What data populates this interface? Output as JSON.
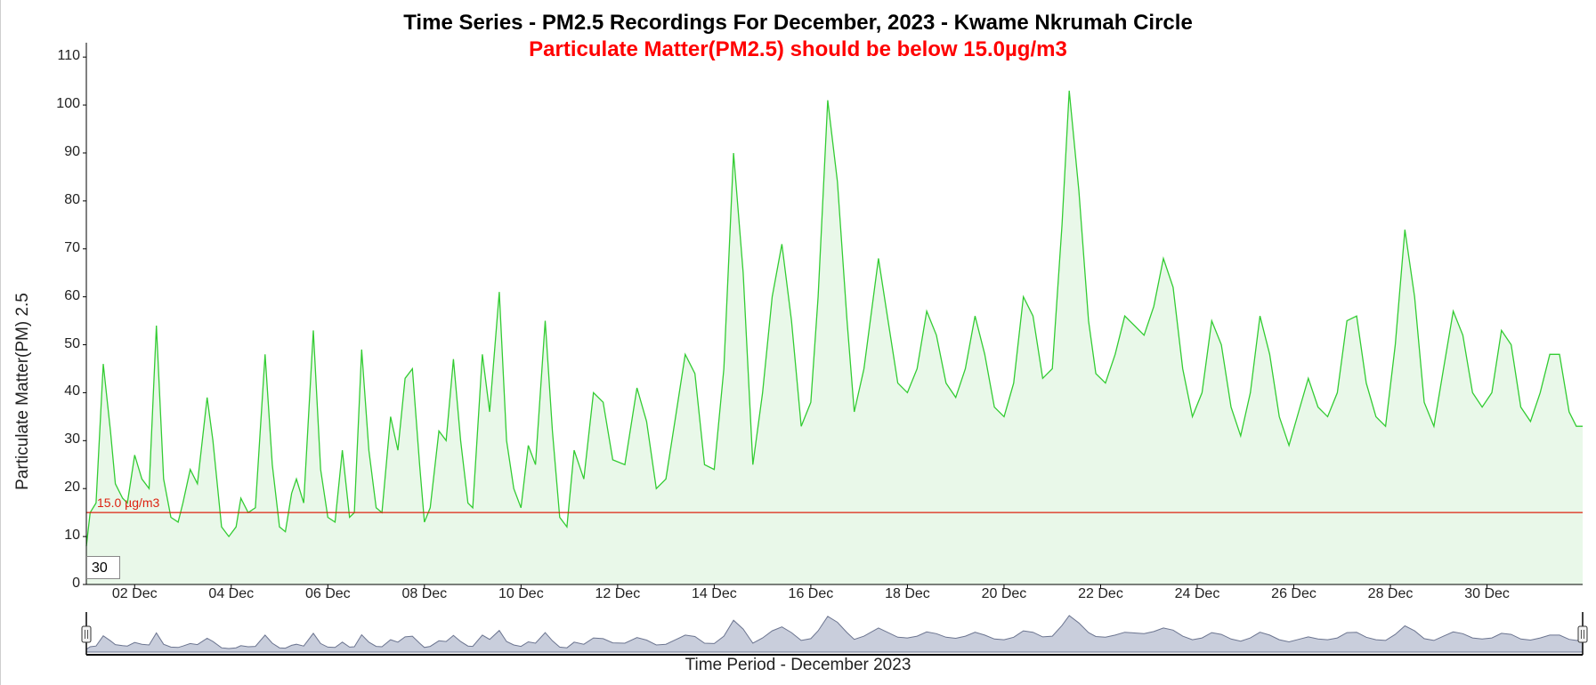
{
  "chart_data": {
    "type": "area",
    "title": "Time Series - PM2.5 Recordings For December, 2023 - Kwame Nkrumah Circle",
    "subtitle": "Particulate Matter(PM2.5) should be below 15.0µg/m3",
    "xlabel": "Time Period - December 2023",
    "ylabel": "Particulate Matter(PM) 2.5",
    "ylim": [
      0,
      113
    ],
    "xlim": [
      1.0,
      31.98
    ],
    "y_ticks": [
      0,
      10,
      20,
      30,
      40,
      50,
      60,
      70,
      80,
      90,
      100,
      110
    ],
    "x_ticks": [
      {
        "label": "02 Dec",
        "day": 2
      },
      {
        "label": "04 Dec",
        "day": 4
      },
      {
        "label": "06 Dec",
        "day": 6
      },
      {
        "label": "08 Dec",
        "day": 8
      },
      {
        "label": "10 Dec",
        "day": 10
      },
      {
        "label": "12 Dec",
        "day": 12
      },
      {
        "label": "14 Dec",
        "day": 14
      },
      {
        "label": "16 Dec",
        "day": 16
      },
      {
        "label": "18 Dec",
        "day": 18
      },
      {
        "label": "20 Dec",
        "day": 20
      },
      {
        "label": "22 Dec",
        "day": 22
      },
      {
        "label": "24 Dec",
        "day": 24
      },
      {
        "label": "26 Dec",
        "day": 26
      },
      {
        "label": "28 Dec",
        "day": 28
      },
      {
        "label": "30 Dec",
        "day": 30
      }
    ],
    "series": [
      {
        "name": "PM2.5",
        "color": "#33cc33",
        "fill": "#e9f8e9",
        "points": [
          [
            1.0,
            8
          ],
          [
            1.08,
            15
          ],
          [
            1.2,
            17
          ],
          [
            1.35,
            46
          ],
          [
            1.5,
            32
          ],
          [
            1.6,
            21
          ],
          [
            1.75,
            18
          ],
          [
            1.85,
            17
          ],
          [
            2.0,
            27
          ],
          [
            2.15,
            22
          ],
          [
            2.3,
            20
          ],
          [
            2.45,
            54
          ],
          [
            2.6,
            22
          ],
          [
            2.75,
            14
          ],
          [
            2.9,
            13
          ],
          [
            3.0,
            17
          ],
          [
            3.15,
            24
          ],
          [
            3.3,
            21
          ],
          [
            3.5,
            39
          ],
          [
            3.62,
            30
          ],
          [
            3.8,
            12
          ],
          [
            3.95,
            10
          ],
          [
            4.1,
            12
          ],
          [
            4.2,
            18
          ],
          [
            4.35,
            15
          ],
          [
            4.5,
            16
          ],
          [
            4.7,
            48
          ],
          [
            4.85,
            25
          ],
          [
            5.0,
            12
          ],
          [
            5.12,
            11
          ],
          [
            5.25,
            19
          ],
          [
            5.35,
            22
          ],
          [
            5.5,
            17
          ],
          [
            5.7,
            53
          ],
          [
            5.85,
            24
          ],
          [
            6.0,
            14
          ],
          [
            6.15,
            13
          ],
          [
            6.3,
            28
          ],
          [
            6.45,
            14
          ],
          [
            6.55,
            15
          ],
          [
            6.7,
            49
          ],
          [
            6.85,
            28
          ],
          [
            7.0,
            16
          ],
          [
            7.12,
            15
          ],
          [
            7.3,
            35
          ],
          [
            7.45,
            28
          ],
          [
            7.6,
            43
          ],
          [
            7.75,
            45
          ],
          [
            7.9,
            25
          ],
          [
            8.0,
            13
          ],
          [
            8.12,
            16
          ],
          [
            8.3,
            32
          ],
          [
            8.45,
            30
          ],
          [
            8.6,
            47
          ],
          [
            8.75,
            30
          ],
          [
            8.9,
            17
          ],
          [
            9.0,
            16
          ],
          [
            9.2,
            48
          ],
          [
            9.35,
            36
          ],
          [
            9.55,
            61
          ],
          [
            9.7,
            30
          ],
          [
            9.85,
            20
          ],
          [
            10.0,
            16
          ],
          [
            10.15,
            29
          ],
          [
            10.3,
            25
          ],
          [
            10.5,
            55
          ],
          [
            10.65,
            32
          ],
          [
            10.8,
            14
          ],
          [
            10.95,
            12
          ],
          [
            11.1,
            28
          ],
          [
            11.3,
            22
          ],
          [
            11.5,
            40
          ],
          [
            11.7,
            38
          ],
          [
            11.9,
            26
          ],
          [
            12.15,
            25
          ],
          [
            12.4,
            41
          ],
          [
            12.6,
            34
          ],
          [
            12.8,
            20
          ],
          [
            13.0,
            22
          ],
          [
            13.2,
            35
          ],
          [
            13.4,
            48
          ],
          [
            13.6,
            44
          ],
          [
            13.8,
            25
          ],
          [
            14.0,
            24
          ],
          [
            14.2,
            45
          ],
          [
            14.4,
            90
          ],
          [
            14.6,
            65
          ],
          [
            14.8,
            25
          ],
          [
            15.0,
            40
          ],
          [
            15.2,
            60
          ],
          [
            15.4,
            71
          ],
          [
            15.6,
            55
          ],
          [
            15.8,
            33
          ],
          [
            16.0,
            38
          ],
          [
            16.15,
            60
          ],
          [
            16.35,
            101
          ],
          [
            16.55,
            84
          ],
          [
            16.75,
            55
          ],
          [
            16.9,
            36
          ],
          [
            17.1,
            45
          ],
          [
            17.4,
            68
          ],
          [
            17.6,
            55
          ],
          [
            17.8,
            42
          ],
          [
            18.0,
            40
          ],
          [
            18.2,
            45
          ],
          [
            18.4,
            57
          ],
          [
            18.6,
            52
          ],
          [
            18.8,
            42
          ],
          [
            19.0,
            39
          ],
          [
            19.2,
            45
          ],
          [
            19.4,
            56
          ],
          [
            19.6,
            48
          ],
          [
            19.8,
            37
          ],
          [
            20.0,
            35
          ],
          [
            20.2,
            42
          ],
          [
            20.4,
            60
          ],
          [
            20.6,
            56
          ],
          [
            20.8,
            43
          ],
          [
            21.0,
            45
          ],
          [
            21.2,
            75
          ],
          [
            21.35,
            103
          ],
          [
            21.55,
            82
          ],
          [
            21.75,
            55
          ],
          [
            21.9,
            44
          ],
          [
            22.1,
            42
          ],
          [
            22.3,
            48
          ],
          [
            22.5,
            56
          ],
          [
            22.7,
            54
          ],
          [
            22.9,
            52
          ],
          [
            23.1,
            58
          ],
          [
            23.3,
            68
          ],
          [
            23.5,
            62
          ],
          [
            23.7,
            45
          ],
          [
            23.9,
            35
          ],
          [
            24.1,
            40
          ],
          [
            24.3,
            55
          ],
          [
            24.5,
            50
          ],
          [
            24.7,
            37
          ],
          [
            24.9,
            31
          ],
          [
            25.1,
            40
          ],
          [
            25.3,
            56
          ],
          [
            25.5,
            48
          ],
          [
            25.7,
            35
          ],
          [
            25.9,
            29
          ],
          [
            26.1,
            36
          ],
          [
            26.3,
            43
          ],
          [
            26.5,
            37
          ],
          [
            26.7,
            35
          ],
          [
            26.9,
            40
          ],
          [
            27.1,
            55
          ],
          [
            27.3,
            56
          ],
          [
            27.5,
            42
          ],
          [
            27.7,
            35
          ],
          [
            27.9,
            33
          ],
          [
            28.1,
            50
          ],
          [
            28.3,
            74
          ],
          [
            28.5,
            60
          ],
          [
            28.7,
            38
          ],
          [
            28.9,
            33
          ],
          [
            29.1,
            45
          ],
          [
            29.3,
            57
          ],
          [
            29.5,
            52
          ],
          [
            29.7,
            40
          ],
          [
            29.9,
            37
          ],
          [
            30.1,
            40
          ],
          [
            30.3,
            53
          ],
          [
            30.5,
            50
          ],
          [
            30.7,
            37
          ],
          [
            30.9,
            34
          ],
          [
            31.1,
            40
          ],
          [
            31.3,
            48
          ],
          [
            31.5,
            48
          ],
          [
            31.7,
            36
          ],
          [
            31.85,
            33
          ],
          [
            31.98,
            33
          ]
        ]
      }
    ],
    "reference_line": {
      "value": 15.0,
      "label": "15.0 µg/m3",
      "color": "#dd2211"
    },
    "grid": false,
    "legend": "none"
  },
  "roll_period": "30",
  "navigator": {
    "fill": "#c9cedc",
    "stroke": "#6c7590"
  }
}
